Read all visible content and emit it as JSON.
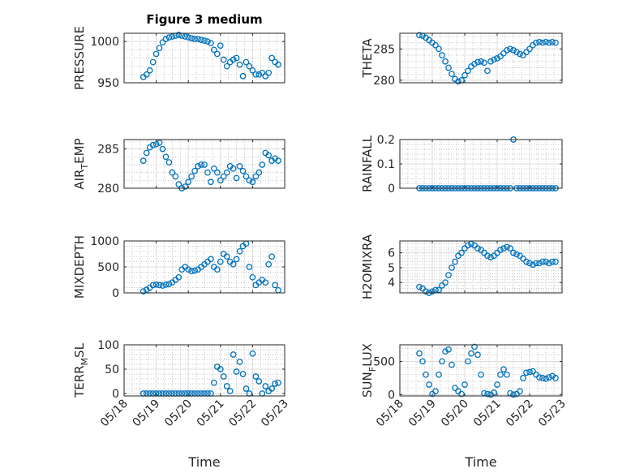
{
  "chart_data": {
    "type": "scatter",
    "title": "Figure 3 medium",
    "marker_color": "#0072BD",
    "x_unit": "days after 05/18",
    "xlim": [
      0,
      5
    ],
    "xtick_values": [
      0,
      1,
      2,
      3,
      4,
      5
    ],
    "xtick_labels": [
      "05/18",
      "05/19",
      "05/20",
      "05/21",
      "05/22",
      "05/23"
    ],
    "xlabel": "Time",
    "grid": true,
    "x": [
      0.6,
      0.7,
      0.8,
      0.9,
      1.0,
      1.1,
      1.2,
      1.3,
      1.4,
      1.5,
      1.6,
      1.7,
      1.8,
      1.9,
      2.0,
      2.1,
      2.2,
      2.3,
      2.4,
      2.5,
      2.6,
      2.7,
      2.8,
      2.9,
      3.0,
      3.1,
      3.2,
      3.3,
      3.4,
      3.5,
      3.6,
      3.7,
      3.8,
      3.9,
      4.0,
      4.1,
      4.2,
      4.3,
      4.4,
      4.5,
      4.6,
      4.7,
      4.8
    ],
    "panels": [
      {
        "id": "pressure",
        "ylabel": {
          "main": "PRESSURE",
          "sub": "",
          "rest": ""
        },
        "ylim": [
          950,
          1010
        ],
        "yticks": [
          950,
          1000
        ],
        "ytick_labels": [
          "950",
          "1000"
        ],
        "yminor": 10,
        "y": [
          957,
          960,
          965,
          975,
          985,
          992,
          999,
          1003,
          1005,
          1006,
          1007,
          1008,
          1007,
          1006,
          1005,
          1004,
          1003,
          1003,
          1002,
          1001,
          1000,
          998,
          990,
          985,
          995,
          978,
          970,
          975,
          978,
          980,
          972,
          958,
          975,
          970,
          965,
          960,
          960,
          962,
          958,
          962,
          980,
          975,
          972
        ]
      },
      {
        "id": "theta",
        "ylabel": {
          "main": "THETA",
          "sub": "",
          "rest": ""
        },
        "ylim": [
          279.6,
          287.5
        ],
        "yticks": [
          280,
          285
        ],
        "ytick_labels": [
          "280",
          "285"
        ],
        "yminor": 1,
        "y": [
          287.2,
          287.1,
          286.8,
          286.4,
          286,
          285.6,
          285,
          284,
          283,
          282,
          281,
          280.2,
          279.8,
          280,
          280.8,
          281.5,
          282.2,
          282.6,
          282.9,
          283,
          282.8,
          281.5,
          283,
          283.3,
          283.5,
          283.8,
          284.3,
          284.8,
          285,
          284.8,
          284.5,
          284.2,
          284,
          284.5,
          285,
          285.6,
          286,
          286.1,
          286,
          286.1,
          286,
          286.1,
          286
        ]
      },
      {
        "id": "air-temp",
        "ylabel": {
          "main": "AIR",
          "sub": "T",
          "rest": "EMP"
        },
        "ylim": [
          280,
          286.2
        ],
        "yticks": [
          280,
          285
        ],
        "ytick_labels": [
          "280",
          "285"
        ],
        "yminor": 1,
        "y": [
          283.5,
          284.5,
          285.2,
          285.5,
          285.6,
          285.8,
          285,
          284,
          283.3,
          282,
          281.5,
          280.5,
          280,
          280.2,
          280.8,
          281.5,
          282.2,
          282.8,
          283,
          283,
          282,
          280.8,
          282.5,
          282,
          281,
          281.5,
          282,
          282.8,
          282.5,
          281.3,
          282.8,
          282.2,
          281.5,
          281,
          280.8,
          281.5,
          282,
          283,
          284.5,
          284.2,
          283.5,
          283.8,
          283.5
        ]
      },
      {
        "id": "rainfall",
        "ylabel": {
          "main": "RAINFALL",
          "sub": "",
          "rest": ""
        },
        "ylim": [
          0,
          0.2
        ],
        "yticks": [
          0,
          0.1,
          0.2
        ],
        "ytick_labels": [
          "0",
          "0.1",
          "0.2"
        ],
        "yminor": 0.02,
        "y": [
          0,
          0,
          0,
          0,
          0,
          0,
          0,
          0,
          0,
          0,
          0,
          0,
          0,
          0,
          0,
          0,
          0,
          0,
          0,
          0,
          0,
          0,
          0,
          0,
          0,
          0,
          0,
          0,
          0,
          0.2,
          0,
          0,
          0,
          0,
          0,
          0,
          0,
          0,
          0,
          0,
          0,
          0,
          0
        ]
      },
      {
        "id": "mixdepth",
        "ylabel": {
          "main": "MIXDEPTH",
          "sub": "",
          "rest": ""
        },
        "ylim": [
          0,
          1000
        ],
        "yticks": [
          0,
          500,
          1000
        ],
        "ytick_labels": [
          "0",
          "500",
          "1000"
        ],
        "yminor": 100,
        "y": [
          30,
          60,
          100,
          150,
          160,
          150,
          140,
          160,
          170,
          200,
          250,
          300,
          450,
          500,
          450,
          420,
          430,
          450,
          500,
          550,
          600,
          650,
          500,
          450,
          600,
          750,
          700,
          600,
          550,
          650,
          800,
          900,
          950,
          500,
          300,
          150,
          200,
          250,
          200,
          550,
          700,
          150,
          50
        ]
      },
      {
        "id": "h2omixra",
        "ylabel": {
          "main": "H2OMIXRA",
          "sub": "",
          "rest": ""
        },
        "ylim": [
          3.3,
          6.8
        ],
        "yticks": [
          4,
          5,
          6
        ],
        "ytick_labels": [
          "4",
          "5",
          "6"
        ],
        "yminor": 0.2,
        "y": [
          3.7,
          3.6,
          3.4,
          3.3,
          3.4,
          3.5,
          3.5,
          3.8,
          4,
          4.5,
          5,
          5.4,
          5.8,
          6,
          6.3,
          6.5,
          6.6,
          6.5,
          6.3,
          6.2,
          6,
          5.8,
          5.7,
          5.8,
          6,
          6.2,
          6.3,
          6.4,
          6.3,
          6,
          5.9,
          5.8,
          5.6,
          5.4,
          5.3,
          5.2,
          5.3,
          5.3,
          5.4,
          5.4,
          5.3,
          5.4,
          5.4
        ]
      },
      {
        "id": "terr-msl",
        "ylabel": {
          "main": "TERR",
          "sub": "M",
          "rest": "SL"
        },
        "ylim": [
          -5,
          100
        ],
        "yticks": [
          0,
          50,
          100
        ],
        "ytick_labels": [
          "0",
          "50",
          "100"
        ],
        "yminor": 10,
        "y": [
          0,
          0,
          0,
          0,
          0,
          0,
          0,
          0,
          0,
          0,
          0,
          0,
          0,
          0,
          0,
          0,
          0,
          0,
          0,
          0,
          0,
          0,
          22,
          55,
          50,
          35,
          15,
          5,
          80,
          45,
          65,
          40,
          10,
          0,
          82,
          35,
          25,
          0,
          15,
          5,
          10,
          20,
          22
        ]
      },
      {
        "id": "sun-flux",
        "ylabel": {
          "main": "SUN",
          "sub": "F",
          "rest": "LUX"
        },
        "ylim": [
          -20,
          750
        ],
        "yticks": [
          0,
          500
        ],
        "ytick_labels": [
          "0",
          "500"
        ],
        "yminor": 100,
        "y": [
          620,
          500,
          300,
          150,
          10,
          50,
          300,
          500,
          650,
          680,
          450,
          100,
          50,
          10,
          150,
          500,
          620,
          720,
          600,
          300,
          20,
          10,
          0,
          30,
          150,
          300,
          380,
          300,
          20,
          0,
          10,
          50,
          250,
          330,
          340,
          350,
          300,
          260,
          250,
          240,
          260,
          280,
          250
        ]
      }
    ]
  }
}
